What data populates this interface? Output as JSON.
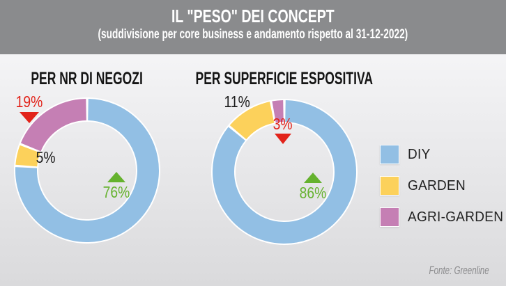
{
  "header": {
    "title": "IL \"PESO\" DEI CONCEPT",
    "subtitle": "(suddivisione per core business e andamento rispetto al 31-12-2022)"
  },
  "colors": {
    "diy_blue": "#92bfe4",
    "garden_yellow": "#fcd15b",
    "agri_pink": "#c57fb4",
    "trend_up_green": "#65b22e",
    "trend_down_red": "#e2231a",
    "header_bg": "#8a8b8d",
    "ring_separator": "#ffffff"
  },
  "chart_data": [
    {
      "type": "pie",
      "subtype": "donut",
      "title": "PER NR DI NEGOZI",
      "unit": "%",
      "categories": [
        "DIY",
        "GARDEN",
        "AGRI-GARDEN"
      ],
      "values": [
        76,
        5,
        19
      ],
      "colors": [
        "#92bfe4",
        "#fcd15b",
        "#c57fb4"
      ],
      "start_angle_deg": 0,
      "clockwise": true,
      "labels": {
        "diy": {
          "text": "76%",
          "trend": "up"
        },
        "garden": {
          "text": "5%",
          "trend": "none"
        },
        "agri": {
          "text": "19%",
          "trend": "down"
        }
      }
    },
    {
      "type": "pie",
      "subtype": "donut",
      "title": "PER SUPERFICIE ESPOSITIVA",
      "unit": "%",
      "categories": [
        "DIY",
        "GARDEN",
        "AGRI-GARDEN"
      ],
      "values": [
        86,
        11,
        3
      ],
      "colors": [
        "#92bfe4",
        "#fcd15b",
        "#c57fb4"
      ],
      "start_angle_deg": 0,
      "clockwise": true,
      "labels": {
        "diy": {
          "text": "86%",
          "trend": "up"
        },
        "garden": {
          "text": "11%",
          "trend": "none"
        },
        "agri": {
          "text": "3%",
          "trend": "down"
        }
      }
    }
  ],
  "legend": {
    "position": "right",
    "items": [
      {
        "label": "DIY",
        "color": "#92bfe4"
      },
      {
        "label": "GARDEN",
        "color": "#fcd15b"
      },
      {
        "label": "AGRI-GARDEN",
        "color": "#c57fb4"
      }
    ]
  },
  "footer": {
    "source": "Fonte: Greenline"
  }
}
